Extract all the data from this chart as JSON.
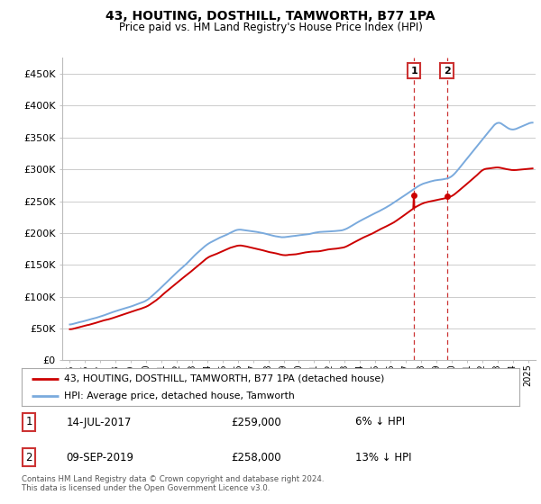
{
  "title": "43, HOUTING, DOSTHILL, TAMWORTH, B77 1PA",
  "subtitle": "Price paid vs. HM Land Registry's House Price Index (HPI)",
  "ylabel_ticks": [
    "£0",
    "£50K",
    "£100K",
    "£150K",
    "£200K",
    "£250K",
    "£300K",
    "£350K",
    "£400K",
    "£450K"
  ],
  "ylim": [
    0,
    475000
  ],
  "xlim_start": 1994.5,
  "xlim_end": 2025.5,
  "legend_line1": "43, HOUTING, DOSTHILL, TAMWORTH, B77 1PA (detached house)",
  "legend_line2": "HPI: Average price, detached house, Tamworth",
  "annotation1_date": "14-JUL-2017",
  "annotation1_price": "£259,000",
  "annotation1_pct": "6% ↓ HPI",
  "annotation2_date": "09-SEP-2019",
  "annotation2_price": "£258,000",
  "annotation2_pct": "13% ↓ HPI",
  "footnote": "Contains HM Land Registry data © Crown copyright and database right 2024.\nThis data is licensed under the Open Government Licence v3.0.",
  "color_red": "#cc0000",
  "color_blue": "#7aaadd",
  "color_annot_box": "#cc3333",
  "background_color": "#ffffff",
  "grid_color": "#cccccc",
  "sale1_x": 2017.54,
  "sale1_y": 259000,
  "sale2_x": 2019.69,
  "sale2_y": 258000
}
